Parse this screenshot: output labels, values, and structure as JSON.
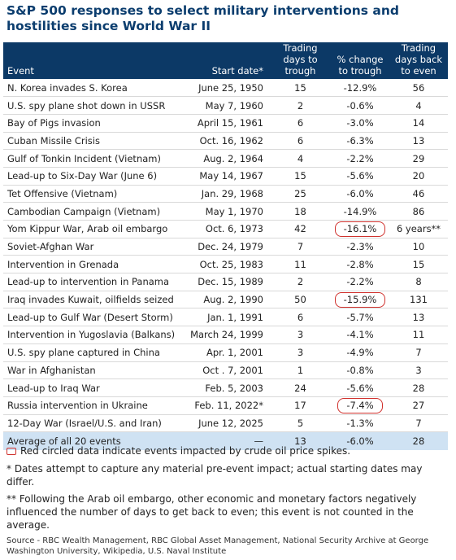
{
  "title": "S&P 500 responses to select military interventions and hostilities since World War II",
  "table": {
    "headers": {
      "event": "Event",
      "start_date": "Start date*",
      "trading_days_to_trough": "Trading days to trough",
      "pct_change_to_trough": "% change to trough",
      "trading_days_back_to_even": "Trading days back to even"
    },
    "rows": [
      {
        "event": "N. Korea invades S. Korea",
        "date": "June 25, 1950",
        "days": "15",
        "pct": "-12.9%",
        "even": "56",
        "circled": false
      },
      {
        "event": "U.S. spy plane shot down in USSR",
        "date": "May 7, 1960",
        "days": "2",
        "pct": "-0.6%",
        "even": "4",
        "circled": false
      },
      {
        "event": "Bay of Pigs invasion",
        "date": "April 15, 1961",
        "days": "6",
        "pct": "-3.0%",
        "even": "14",
        "circled": false
      },
      {
        "event": "Cuban Missile Crisis",
        "date": "Oct. 16, 1962",
        "days": "6",
        "pct": "-6.3%",
        "even": "13",
        "circled": false
      },
      {
        "event": "Gulf of Tonkin Incident (Vietnam)",
        "date": "Aug. 2, 1964",
        "days": "4",
        "pct": "-2.2%",
        "even": "29",
        "circled": false
      },
      {
        "event": "Lead-up to Six-Day War (June 6)",
        "date": "May 14, 1967",
        "days": "15",
        "pct": "-5.6%",
        "even": "20",
        "circled": false
      },
      {
        "event": "Tet Offensive (Vietnam)",
        "date": "Jan. 29, 1968",
        "days": "25",
        "pct": "-6.0%",
        "even": "46",
        "circled": false
      },
      {
        "event": "Cambodian Campaign (Vietnam)",
        "date": "May 1, 1970",
        "days": "18",
        "pct": "-14.9%",
        "even": "86",
        "circled": false
      },
      {
        "event": "Yom Kippur War, Arab oil embargo",
        "date": "Oct. 6, 1973",
        "days": "42",
        "pct": "-16.1%",
        "even": "6 years**",
        "circled": true
      },
      {
        "event": "Soviet-Afghan War",
        "date": "Dec. 24, 1979",
        "days": "7",
        "pct": "-2.3%",
        "even": "10",
        "circled": false
      },
      {
        "event": "Intervention in Grenada",
        "date": "Oct. 25, 1983",
        "days": "11",
        "pct": "-2.8%",
        "even": "15",
        "circled": false
      },
      {
        "event": "Lead-up to intervention in Panama",
        "date": "Dec. 15, 1989",
        "days": "2",
        "pct": "-2.2%",
        "even": "8",
        "circled": false
      },
      {
        "event": "Iraq invades Kuwait, oilfields seized",
        "date": "Aug. 2, 1990",
        "days": "50",
        "pct": "-15.9%",
        "even": "131",
        "circled": true
      },
      {
        "event": "Lead-up to Gulf War (Desert Storm)",
        "date": "Jan. 1, 1991",
        "days": "6",
        "pct": "-5.7%",
        "even": "13",
        "circled": false
      },
      {
        "event": "Intervention in Yugoslavia (Balkans)",
        "date": "March 24, 1999",
        "days": "3",
        "pct": "-4.1%",
        "even": "11",
        "circled": false
      },
      {
        "event": "U.S. spy plane captured in China",
        "date": "Apr. 1, 2001",
        "days": "3",
        "pct": "-4.9%",
        "even": "7",
        "circled": false
      },
      {
        "event": "War in Afghanistan",
        "date": "Oct . 7, 2001",
        "days": "1",
        "pct": "-0.8%",
        "even": "3",
        "circled": false
      },
      {
        "event": "Lead-up to Iraq War",
        "date": "Feb. 5, 2003",
        "days": "24",
        "pct": "-5.6%",
        "even": "28",
        "circled": false
      },
      {
        "event": "Russia intervention in Ukraine",
        "date": "Feb. 11, 2022*",
        "days": "17",
        "pct": "-7.4%",
        "even": "27",
        "circled": true
      },
      {
        "event": "12-Day War (Israel/U.S. and Iran)",
        "date": "June 12, 2025",
        "days": "5",
        "pct": "-1.3%",
        "even": "7",
        "circled": false
      }
    ],
    "average": {
      "event": "Average of all 20 events",
      "date": "—",
      "days": "13",
      "pct": "-6.0%",
      "even": "28"
    }
  },
  "legend": "Red circled data indicate events impacted by crude oil price spikes.",
  "footnote_1": "* Dates attempt to capture any material pre-event impact; actual starting dates may differ.",
  "footnote_2": "** Following the Arab oil embargo, other economic and monetary factors negatively influenced the number of days to get back to even; this event is not counted in the average.",
  "source": "Source - RBC Wealth Management, RBC Global Asset Management, National Security Archive at George Washington University, Wikipedia, U.S. Naval Institute",
  "colors": {
    "title": "#0b3d6e",
    "header_bg": "#0c3966",
    "average_bg": "#cfe2f3",
    "highlight": "#d0312d"
  }
}
